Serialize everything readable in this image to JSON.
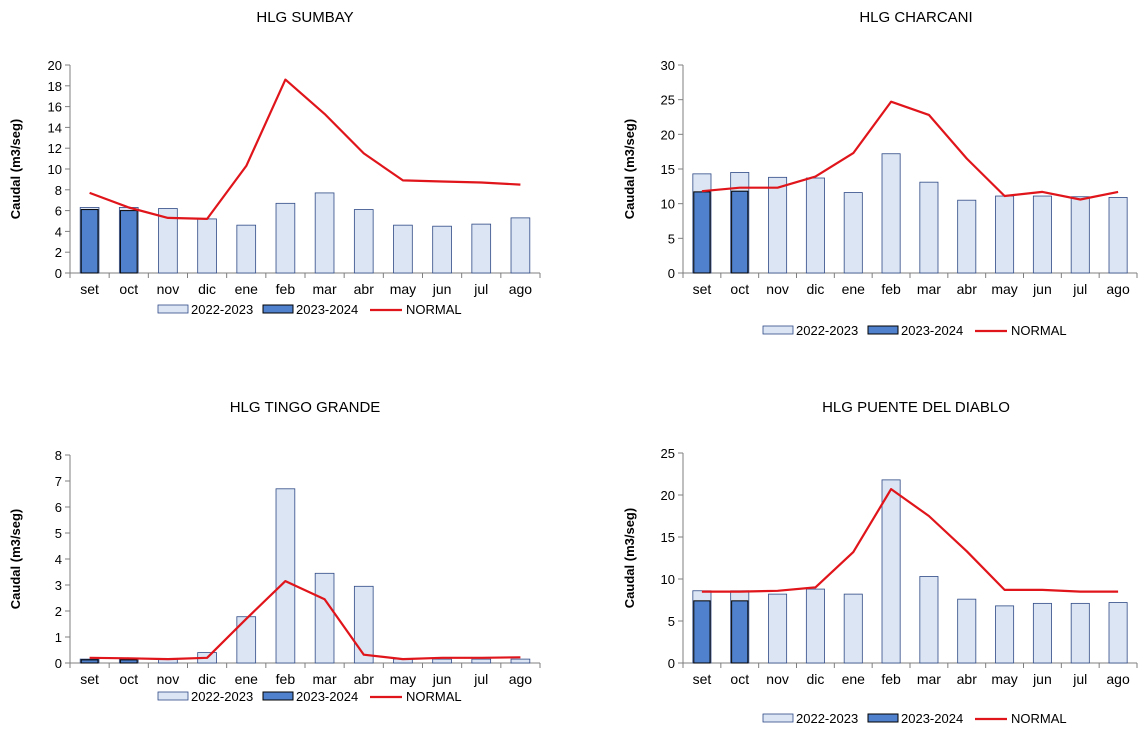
{
  "colors": {
    "series_2022_fill": "#dbe5f3",
    "series_2022_stroke": "#2f4a86",
    "series_2023_fill": "#4f81cc",
    "series_2023_stroke": "#000000",
    "normal_line": "#e0151b",
    "axis": "#7f7f7f"
  },
  "legend": {
    "labels": [
      "2022-2023",
      "2023-2024",
      "NORMAL"
    ],
    "placement": "bottom"
  },
  "chart_data": [
    {
      "type": "bar",
      "title": "HLG SUMBAY",
      "ylabel": "Caudal (m3/seg)",
      "xlabel": "",
      "categories": [
        "set",
        "oct",
        "nov",
        "dic",
        "ene",
        "feb",
        "mar",
        "abr",
        "may",
        "jun",
        "jul",
        "ago"
      ],
      "ylim": [
        0,
        20
      ],
      "yticks": [
        0,
        2,
        4,
        6,
        8,
        10,
        12,
        14,
        16,
        18,
        20
      ],
      "series": [
        {
          "name": "2022-2023",
          "type": "bar",
          "values": [
            6.3,
            6.3,
            6.2,
            5.2,
            4.6,
            6.7,
            7.7,
            6.1,
            4.6,
            4.5,
            4.7,
            5.3
          ]
        },
        {
          "name": "2023-2024",
          "type": "bar",
          "values": [
            6.1,
            6.0,
            null,
            null,
            null,
            null,
            null,
            null,
            null,
            null,
            null,
            null
          ]
        },
        {
          "name": "NORMAL",
          "type": "line",
          "values": [
            7.7,
            6.3,
            5.3,
            5.2,
            10.3,
            18.6,
            15.3,
            11.5,
            8.9,
            8.8,
            8.7,
            8.5
          ]
        }
      ],
      "grid": false,
      "legend_position": "bottom"
    },
    {
      "type": "bar",
      "title": "HLG CHARCANI",
      "ylabel": "Caudal (m3/seg)",
      "xlabel": "",
      "categories": [
        "set",
        "oct",
        "nov",
        "dic",
        "ene",
        "feb",
        "mar",
        "abr",
        "may",
        "jun",
        "jul",
        "ago"
      ],
      "ylim": [
        0,
        30
      ],
      "yticks": [
        0,
        5,
        10,
        15,
        20,
        25,
        30
      ],
      "series": [
        {
          "name": "2022-2023",
          "type": "bar",
          "values": [
            14.3,
            14.5,
            13.8,
            13.7,
            11.6,
            17.2,
            13.1,
            10.5,
            11.1,
            11.1,
            11.0,
            10.9
          ]
        },
        {
          "name": "2023-2024",
          "type": "bar",
          "values": [
            11.7,
            11.8,
            null,
            null,
            null,
            null,
            null,
            null,
            null,
            null,
            null,
            null
          ]
        },
        {
          "name": "NORMAL",
          "type": "line",
          "values": [
            11.8,
            12.3,
            12.3,
            13.9,
            17.3,
            24.7,
            22.8,
            16.5,
            11.1,
            11.7,
            10.6,
            11.7
          ]
        }
      ],
      "grid": false,
      "legend_position": "bottom"
    },
    {
      "type": "bar",
      "title": "HLG TINGO  GRANDE",
      "ylabel": "Caudal (m3/seg)",
      "xlabel": "",
      "categories": [
        "set",
        "oct",
        "nov",
        "dic",
        "ene",
        "feb",
        "mar",
        "abr",
        "may",
        "jun",
        "jul",
        "ago"
      ],
      "ylim": [
        0,
        8
      ],
      "yticks": [
        0,
        1,
        2,
        3,
        4,
        5,
        6,
        7,
        8
      ],
      "series": [
        {
          "name": "2022-2023",
          "type": "bar",
          "values": [
            0.15,
            0.15,
            0.15,
            0.4,
            1.78,
            6.7,
            3.45,
            2.95,
            0.15,
            0.15,
            0.15,
            0.15
          ]
        },
        {
          "name": "2023-2024",
          "type": "bar",
          "values": [
            0.12,
            0.12,
            null,
            null,
            null,
            null,
            null,
            null,
            null,
            null,
            null,
            null
          ]
        },
        {
          "name": "NORMAL",
          "type": "line",
          "values": [
            0.2,
            0.18,
            0.15,
            0.2,
            1.7,
            3.15,
            2.45,
            0.32,
            0.15,
            0.2,
            0.2,
            0.22
          ]
        }
      ],
      "grid": false,
      "legend_position": "bottom"
    },
    {
      "type": "bar",
      "title": "HLG PUENTE DEL DIABLO",
      "ylabel": "Caudal (m3/seg)",
      "xlabel": "",
      "categories": [
        "set",
        "oct",
        "nov",
        "dic",
        "ene",
        "feb",
        "mar",
        "abr",
        "may",
        "jun",
        "jul",
        "ago"
      ],
      "ylim": [
        0,
        25
      ],
      "yticks": [
        0,
        5,
        10,
        15,
        20,
        25
      ],
      "series": [
        {
          "name": "2022-2023",
          "type": "bar",
          "values": [
            8.6,
            8.6,
            8.2,
            8.8,
            8.2,
            21.8,
            10.3,
            7.6,
            6.8,
            7.1,
            7.1,
            7.2
          ]
        },
        {
          "name": "2023-2024",
          "type": "bar",
          "values": [
            7.4,
            7.4,
            null,
            null,
            null,
            null,
            null,
            null,
            null,
            null,
            null,
            null
          ]
        },
        {
          "name": "NORMAL",
          "type": "line",
          "values": [
            8.5,
            8.5,
            8.6,
            9.0,
            13.2,
            20.7,
            17.5,
            13.3,
            8.7,
            8.7,
            8.5,
            8.5
          ]
        }
      ],
      "grid": false,
      "legend_position": "bottom"
    }
  ]
}
